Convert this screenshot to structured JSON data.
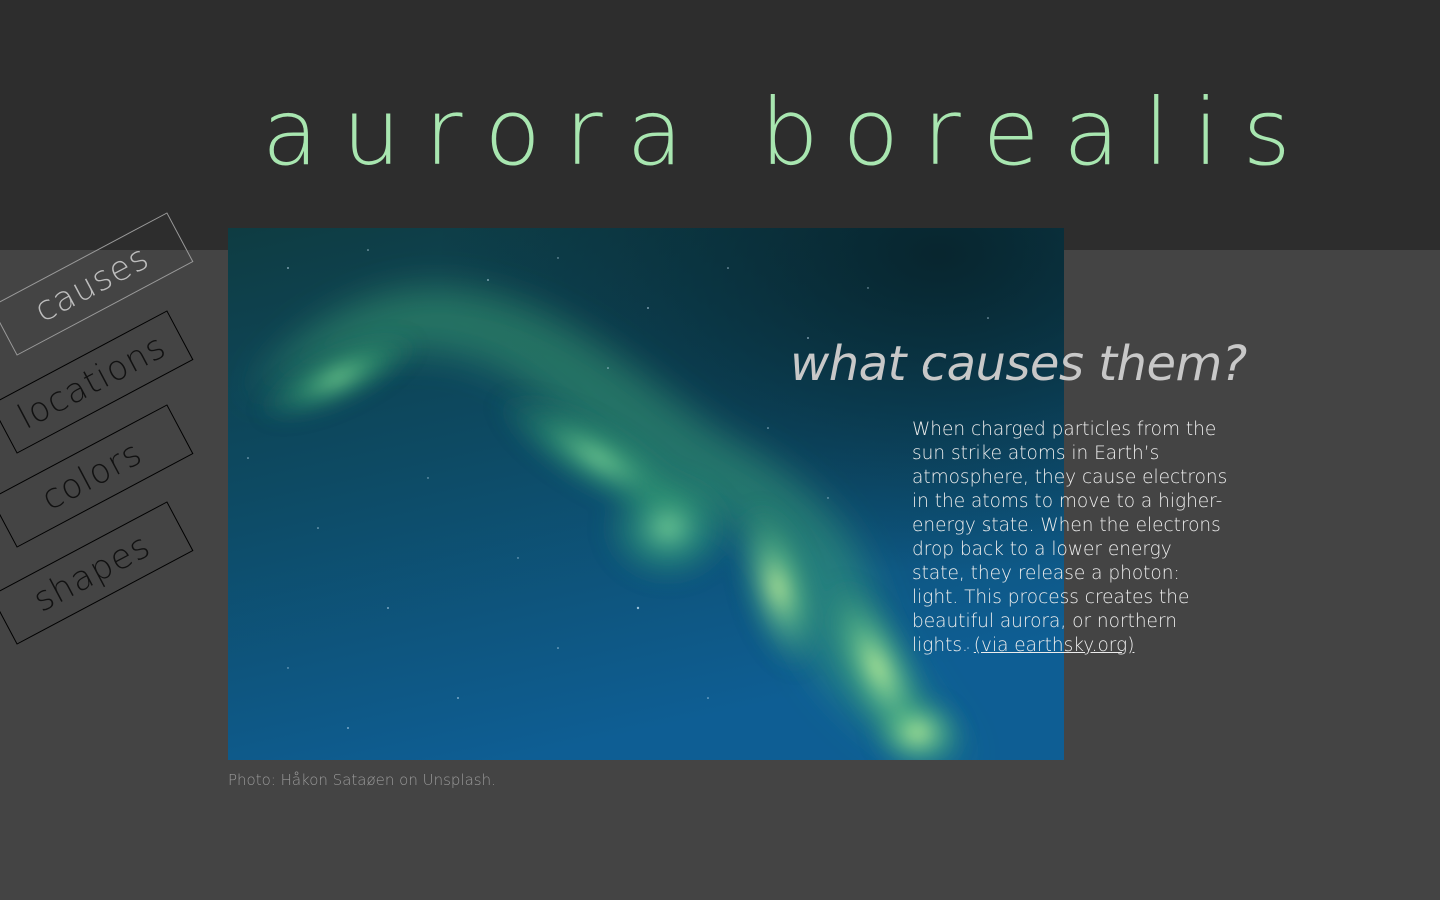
{
  "header": {
    "title": "aurora borealis"
  },
  "nav": {
    "items": [
      {
        "label": "causes",
        "active": true
      },
      {
        "label": "locations",
        "active": false
      },
      {
        "label": "colors",
        "active": false
      },
      {
        "label": "shapes",
        "active": false
      }
    ]
  },
  "photo": {
    "caption": "Photo: Håkon Sataøen on Unsplash."
  },
  "section": {
    "heading": "what causes them?",
    "body": "When charged particles from the sun strike atoms in Earth’s atmosphere, they cause electrons in the atoms to move to a higher-energy state. When the electrons drop back to a lower energy state, they release a photon: light. This process creates the beautiful aurora, or northern lights.",
    "link_text": "(via earthsky.org)"
  },
  "colors": {
    "header_bg": "#2d2d2d",
    "page_bg": "#444444",
    "title": "#a8e6b0",
    "aurora_green": "#6fe08a"
  }
}
